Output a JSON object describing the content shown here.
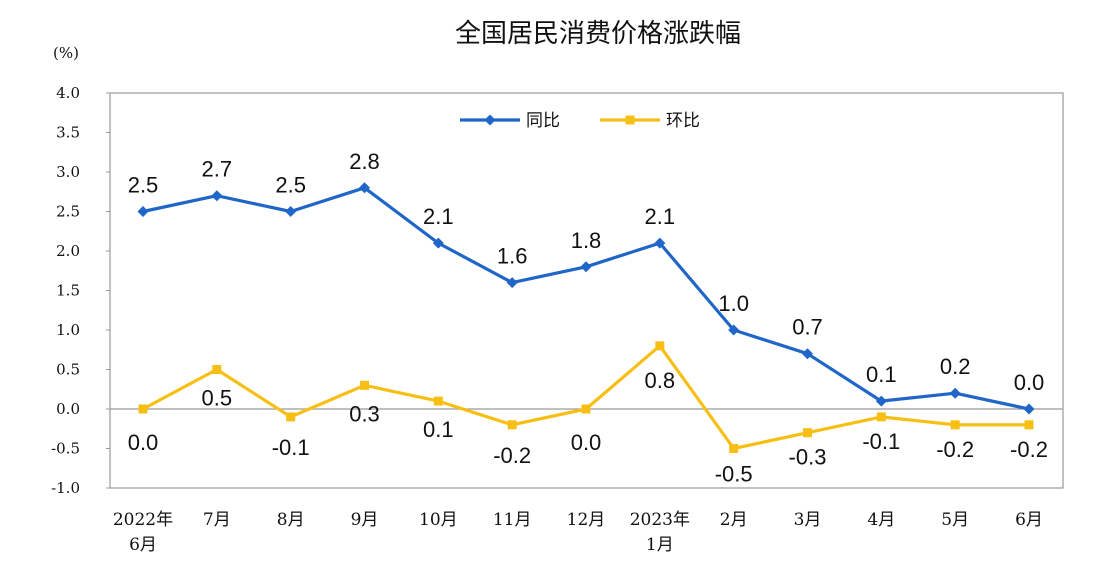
{
  "chart_data": {
    "type": "line",
    "title": "全国居民消费价格涨跌幅",
    "ylabel": "(%)",
    "xlabel": "",
    "ylim": [
      -1.0,
      4.0
    ],
    "yticks": [
      "4.0",
      "3.5",
      "3.0",
      "2.5",
      "2.0",
      "1.5",
      "1.0",
      "0.5",
      "0.0",
      "-0.5",
      "-1.0"
    ],
    "ytick_values": [
      4.0,
      3.5,
      3.0,
      2.5,
      2.0,
      1.5,
      1.0,
      0.5,
      0.0,
      -0.5,
      -1.0
    ],
    "categories": [
      [
        "2022年",
        "6月"
      ],
      [
        "7月"
      ],
      [
        "8月"
      ],
      [
        "9月"
      ],
      [
        "10月"
      ],
      [
        "11月"
      ],
      [
        "12月"
      ],
      [
        "2023年",
        "1月"
      ],
      [
        "2月"
      ],
      [
        "3月"
      ],
      [
        "4月"
      ],
      [
        "5月"
      ],
      [
        "6月"
      ]
    ],
    "legend_position": "top-center",
    "series": [
      {
        "name": "同比",
        "color": "#1f66c8",
        "values": [
          2.5,
          2.7,
          2.5,
          2.8,
          2.1,
          1.6,
          1.8,
          2.1,
          1.0,
          0.7,
          0.1,
          0.2,
          0.0
        ],
        "labels": [
          "2.5",
          "2.7",
          "2.5",
          "2.8",
          "2.1",
          "1.6",
          "1.8",
          "2.1",
          "1.0",
          "0.7",
          "0.1",
          "0.2",
          "0.0"
        ]
      },
      {
        "name": "环比",
        "color": "#f7bf14",
        "values": [
          0.0,
          0.5,
          -0.1,
          0.3,
          0.1,
          -0.2,
          0.0,
          0.8,
          -0.5,
          -0.3,
          -0.1,
          -0.2,
          -0.2
        ],
        "labels": [
          "0.0",
          "0.5",
          "-0.1",
          "0.3",
          "0.1",
          "-0.2",
          "0.0",
          "0.8",
          "-0.5",
          "-0.3",
          "-0.1",
          "-0.2",
          "-0.2"
        ]
      }
    ]
  }
}
